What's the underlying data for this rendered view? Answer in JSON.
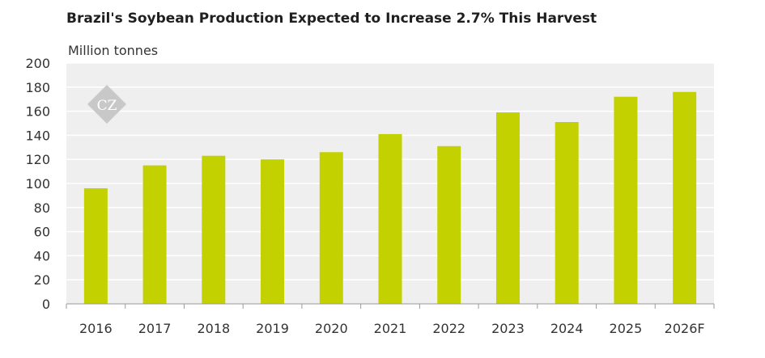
{
  "chart_data": {
    "type": "bar",
    "title": "Brazil's Soybean Production Expected to Increase 2.7% This Harvest",
    "ylabel": "Million tonnes",
    "xlabel": "",
    "categories": [
      "2016",
      "2017",
      "2018",
      "2019",
      "2020",
      "2021",
      "2022",
      "2023",
      "2024",
      "2025",
      "2026F"
    ],
    "values": [
      96,
      115,
      123,
      120,
      126,
      141,
      131,
      159,
      151,
      172,
      176
    ],
    "ylim": [
      0,
      200
    ],
    "yticks": [
      "0",
      "20",
      "40",
      "60",
      "80",
      "100",
      "120",
      "140",
      "160",
      "180",
      "200"
    ],
    "grid": true,
    "legend": "none",
    "colors": {
      "bar": "#c3d100",
      "plot_background": "#efefef",
      "gridline": "#ffffff",
      "axis": "#9a9a9a",
      "watermark": "#c8c8c8"
    },
    "watermark_text": "CZ"
  }
}
